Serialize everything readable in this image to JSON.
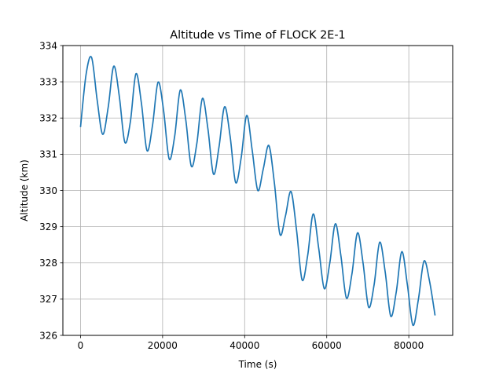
{
  "chart_data": {
    "type": "line",
    "title": "Altitude vs Time of FLOCK 2E-1",
    "xlabel": "Time (s)",
    "ylabel": "Altitude (km)",
    "xlim": [
      -4300,
      90700
    ],
    "ylim": [
      326.0,
      334.0
    ],
    "xticks": [
      0,
      20000,
      40000,
      60000,
      80000
    ],
    "yticks": [
      326,
      327,
      328,
      329,
      330,
      331,
      332,
      333,
      334
    ],
    "grid": true,
    "legend": "none",
    "line_color": "#1f77b4",
    "series": [
      {
        "name": "",
        "points": [
          [
            0,
            331.75
          ],
          [
            1350,
            333.2
          ],
          [
            2700,
            333.67
          ],
          [
            4050,
            332.5
          ],
          [
            5400,
            331.55
          ],
          [
            6750,
            332.3
          ],
          [
            8100,
            333.43
          ],
          [
            9450,
            332.6
          ],
          [
            10800,
            331.33
          ],
          [
            12150,
            331.9
          ],
          [
            13500,
            333.22
          ],
          [
            14850,
            332.4
          ],
          [
            16200,
            331.1
          ],
          [
            17550,
            331.8
          ],
          [
            18900,
            332.99
          ],
          [
            20250,
            332.2
          ],
          [
            21600,
            330.87
          ],
          [
            22950,
            331.5
          ],
          [
            24300,
            332.77
          ],
          [
            25650,
            331.95
          ],
          [
            27000,
            330.67
          ],
          [
            28350,
            331.3
          ],
          [
            29700,
            332.54
          ],
          [
            31050,
            331.7
          ],
          [
            32400,
            330.45
          ],
          [
            33750,
            331.2
          ],
          [
            35100,
            332.31
          ],
          [
            36450,
            331.5
          ],
          [
            37800,
            330.22
          ],
          [
            39150,
            330.9
          ],
          [
            40500,
            332.07
          ],
          [
            41850,
            331.1
          ],
          [
            43200,
            330.0
          ],
          [
            44550,
            330.6
          ],
          [
            45900,
            331.24
          ],
          [
            47250,
            330.2
          ],
          [
            48600,
            328.79
          ],
          [
            49950,
            329.3
          ],
          [
            51300,
            329.97
          ],
          [
            52650,
            328.9
          ],
          [
            54000,
            327.53
          ],
          [
            55350,
            328.2
          ],
          [
            56700,
            329.35
          ],
          [
            58050,
            328.4
          ],
          [
            59400,
            327.29
          ],
          [
            60750,
            328.0
          ],
          [
            62100,
            329.08
          ],
          [
            63450,
            328.2
          ],
          [
            64800,
            327.03
          ],
          [
            66150,
            327.7
          ],
          [
            67500,
            328.83
          ],
          [
            68850,
            328.0
          ],
          [
            70200,
            326.78
          ],
          [
            71550,
            327.4
          ],
          [
            72900,
            328.57
          ],
          [
            74250,
            327.75
          ],
          [
            75600,
            326.53
          ],
          [
            76950,
            327.2
          ],
          [
            78300,
            328.31
          ],
          [
            79650,
            327.4
          ],
          [
            81000,
            326.28
          ],
          [
            82350,
            327.0
          ],
          [
            83700,
            328.05
          ],
          [
            85050,
            327.5
          ],
          [
            86400,
            326.55
          ]
        ]
      }
    ]
  }
}
